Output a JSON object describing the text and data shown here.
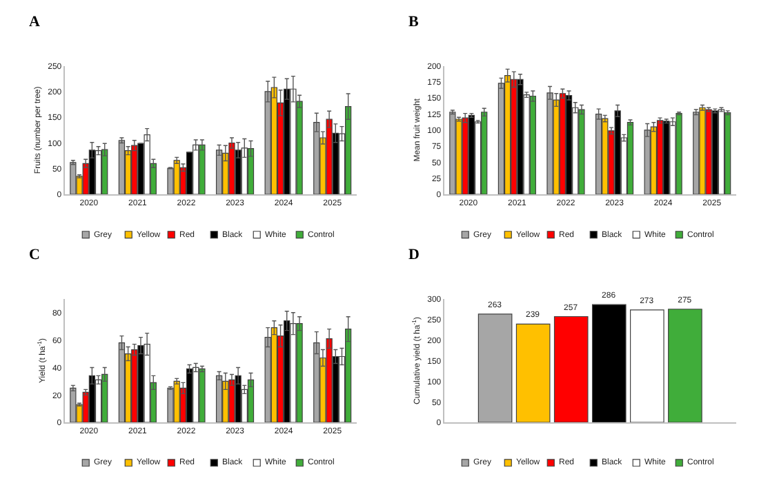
{
  "chart_data": [
    {
      "type": "bar",
      "title": "A",
      "ylabel": "Fruits (number per tree)",
      "categories": [
        "2020",
        "2021",
        "2022",
        "2023",
        "2024",
        "2025"
      ],
      "ylim": [
        0,
        250
      ],
      "yticks": [
        0,
        50,
        100,
        150,
        200,
        250
      ],
      "legend": "bottom",
      "series": [
        {
          "name": "Grey",
          "color": "#a6a6a6",
          "values": [
            62,
            105,
            51,
            86,
            200,
            140
          ],
          "errors": [
            4,
            5,
            1,
            10,
            20,
            18
          ]
        },
        {
          "name": "Yellow",
          "color": "#ffc000",
          "values": [
            35,
            85,
            66,
            80,
            208,
            110
          ],
          "errors": [
            3,
            8,
            6,
            15,
            20,
            12
          ]
        },
        {
          "name": "Red",
          "color": "#ff0000",
          "values": [
            60,
            95,
            52,
            100,
            178,
            146
          ],
          "errors": [
            8,
            10,
            7,
            10,
            25,
            16
          ]
        },
        {
          "name": "Black",
          "color": "#000000",
          "values": [
            86,
            99,
            82,
            86,
            205,
            119
          ],
          "errors": [
            15,
            null,
            null,
            15,
            20,
            18
          ]
        },
        {
          "name": "White",
          "color": "#ffffff",
          "values": [
            85,
            116,
            96,
            90,
            205,
            118
          ],
          "errors": [
            8,
            12,
            10,
            18,
            25,
            14
          ]
        },
        {
          "name": "Control",
          "color": "#40ad3a",
          "values": [
            87,
            60,
            96,
            89,
            181,
            171
          ],
          "errors": [
            12,
            8,
            10,
            15,
            12,
            25
          ]
        }
      ]
    },
    {
      "type": "bar",
      "title": "B",
      "ylabel": "Mean fruit weight",
      "categories": [
        "2020",
        "2021",
        "2022",
        "2023",
        "2024",
        "2025"
      ],
      "ylim": [
        0,
        200
      ],
      "yticks": [
        0,
        25,
        50,
        75,
        100,
        125,
        150,
        175,
        200
      ],
      "legend": "bottom",
      "series": [
        {
          "name": "Grey",
          "color": "#a6a6a6",
          "values": [
            128,
            173,
            158,
            125,
            100,
            128
          ],
          "errors": [
            3,
            8,
            10,
            8,
            10,
            4
          ]
        },
        {
          "name": "Yellow",
          "color": "#ffc000",
          "values": [
            117,
            185,
            147,
            118,
            105,
            135
          ],
          "errors": [
            3,
            10,
            10,
            5,
            7,
            4
          ]
        },
        {
          "name": "Red",
          "color": "#ff0000",
          "values": [
            119,
            179,
            157,
            99,
            115,
            132
          ],
          "errors": [
            7,
            12,
            7,
            5,
            4,
            3
          ]
        },
        {
          "name": "Black",
          "color": "#000000",
          "values": [
            123,
            179,
            154,
            130,
            114,
            130
          ],
          "errors": [
            3,
            8,
            7,
            9,
            3,
            3
          ]
        },
        {
          "name": "White",
          "color": "#ffffff",
          "values": [
            113,
            155,
            135,
            88,
            113,
            132
          ],
          "errors": [
            2,
            4,
            8,
            5,
            6,
            3
          ]
        },
        {
          "name": "Control",
          "color": "#40ad3a",
          "values": [
            128,
            153,
            132,
            112,
            126,
            127
          ],
          "errors": [
            6,
            8,
            7,
            4,
            2,
            3
          ]
        }
      ]
    },
    {
      "type": "bar",
      "title": "C",
      "ylabel": "Yield (t ha$^{-1}$)",
      "categories": [
        "2020",
        "2021",
        "2022",
        "2023",
        "2024",
        "2025"
      ],
      "ylim": [
        0,
        90
      ],
      "yticks": [
        0,
        20,
        40,
        60,
        80
      ],
      "legend": "bottom",
      "series": [
        {
          "name": "Grey",
          "color": "#a6a6a6",
          "values": [
            25,
            58,
            25,
            34,
            62,
            58
          ],
          "errors": [
            2,
            5,
            1,
            3,
            7,
            8
          ]
        },
        {
          "name": "Yellow",
          "color": "#ffc000",
          "values": [
            13,
            50,
            30,
            30,
            69,
            47
          ],
          "errors": [
            1,
            5,
            2,
            6,
            5,
            6
          ]
        },
        {
          "name": "Red",
          "color": "#ff0000",
          "values": [
            22,
            53,
            25,
            31,
            63,
            61
          ],
          "errors": [
            2,
            4,
            4,
            4,
            8,
            7
          ]
        },
        {
          "name": "Black",
          "color": "#000000",
          "values": [
            34,
            56,
            39,
            34,
            74,
            48
          ],
          "errors": [
            6,
            6,
            3,
            6,
            7,
            5
          ]
        },
        {
          "name": "White",
          "color": "#ffffff",
          "values": [
            31,
            57,
            40,
            24,
            72,
            48
          ],
          "errors": [
            3,
            8,
            3,
            3,
            8,
            6
          ]
        },
        {
          "name": "Control",
          "color": "#40ad3a",
          "values": [
            35,
            29,
            39,
            31,
            72,
            68
          ],
          "errors": [
            5,
            5,
            2,
            5,
            5,
            9
          ]
        }
      ]
    },
    {
      "type": "bar",
      "title": "D",
      "ylabel": "Cumulative yield (t ha$^{-1}$)",
      "categories": [
        null
      ],
      "ylim": [
        0,
        300
      ],
      "yticks": [
        0,
        50,
        100,
        150,
        200,
        250,
        300
      ],
      "legend": "bottom",
      "data_labels": true,
      "series": [
        {
          "name": "Grey",
          "color": "#a6a6a6",
          "values": [
            263
          ]
        },
        {
          "name": "Yellow",
          "color": "#ffc000",
          "values": [
            239
          ]
        },
        {
          "name": "Red",
          "color": "#ff0000",
          "values": [
            257
          ]
        },
        {
          "name": "Black",
          "color": "#000000",
          "values": [
            286
          ]
        },
        {
          "name": "White",
          "color": "#ffffff",
          "values": [
            273
          ]
        },
        {
          "name": "Control",
          "color": "#40ad3a",
          "values": [
            275
          ]
        }
      ]
    }
  ]
}
